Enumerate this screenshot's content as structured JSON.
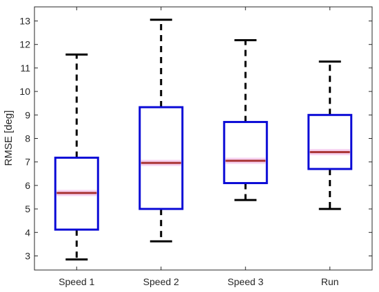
{
  "chart_data": {
    "type": "box",
    "title": "",
    "xlabel": "",
    "ylabel": "RMSE [deg]",
    "ylim": [
      2.4,
      13.6
    ],
    "yticks": [
      3,
      4,
      5,
      6,
      7,
      8,
      9,
      10,
      11,
      12,
      13
    ],
    "grid": false,
    "categories": [
      "Speed 1",
      "Speed 2",
      "Speed 3",
      "Run"
    ],
    "boxes": [
      {
        "whisker_low": 2.85,
        "q1": 4.12,
        "median": 5.68,
        "q3": 7.18,
        "whisker_high": 11.57
      },
      {
        "whisker_low": 3.62,
        "q1": 5.0,
        "median": 6.96,
        "q3": 9.33,
        "whisker_high": 13.05
      },
      {
        "whisker_low": 5.38,
        "q1": 6.1,
        "median": 7.05,
        "q3": 8.7,
        "whisker_high": 12.18
      },
      {
        "whisker_low": 5.0,
        "q1": 6.7,
        "median": 7.42,
        "q3": 9.0,
        "whisker_high": 11.27
      }
    ],
    "colors": {
      "box": "#0a0ad6",
      "median": "#a83232",
      "median_glow": "#f6c9ee",
      "whisker": "#000000",
      "axis": "#262626"
    }
  }
}
